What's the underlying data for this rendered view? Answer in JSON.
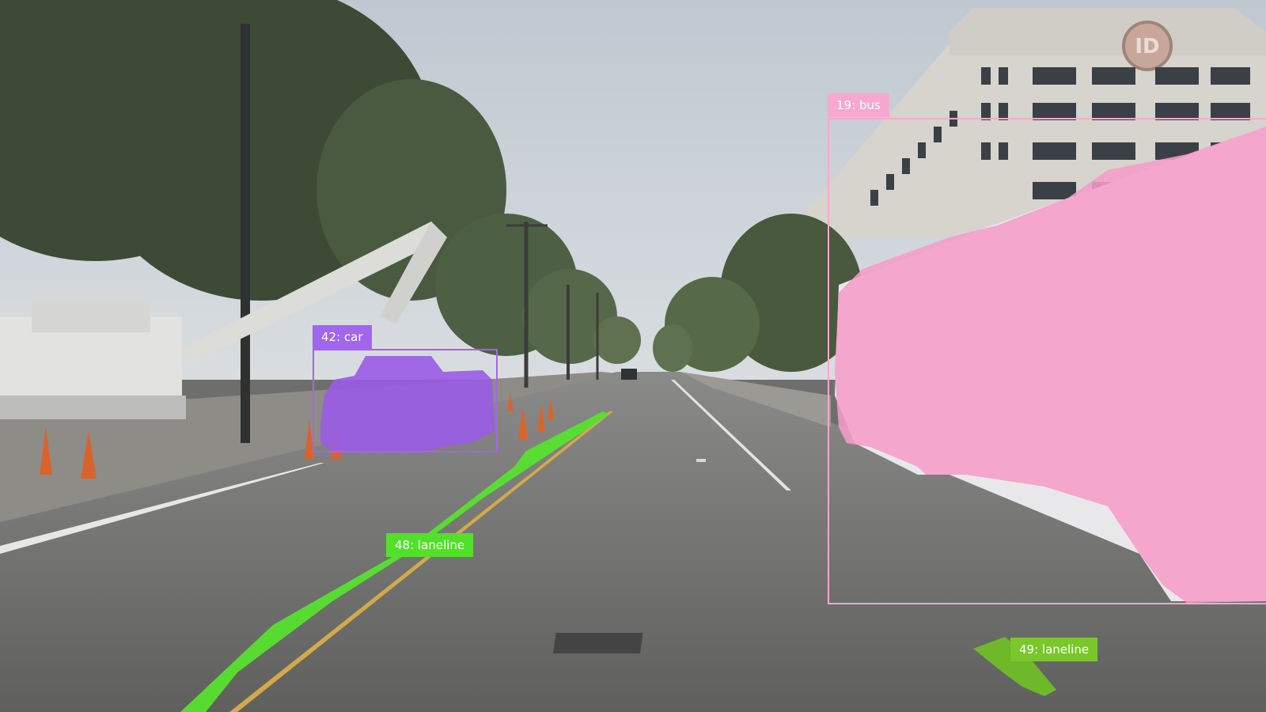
{
  "image": {
    "kind": "street-scene-with-segmentation-overlay",
    "overlays": [
      {
        "id": "19",
        "label": "19: bus",
        "class": "bus",
        "color": "#f7a8cf"
      },
      {
        "id": "42",
        "label": "42: car",
        "class": "car",
        "color": "#a066ee"
      },
      {
        "id": "48",
        "label": "48: laneline",
        "class": "laneline",
        "color": "#53e02b"
      },
      {
        "id": "49",
        "label": "49: laneline",
        "class": "laneline",
        "color": "#79c72a"
      }
    ],
    "building_logo_text": "ID"
  }
}
